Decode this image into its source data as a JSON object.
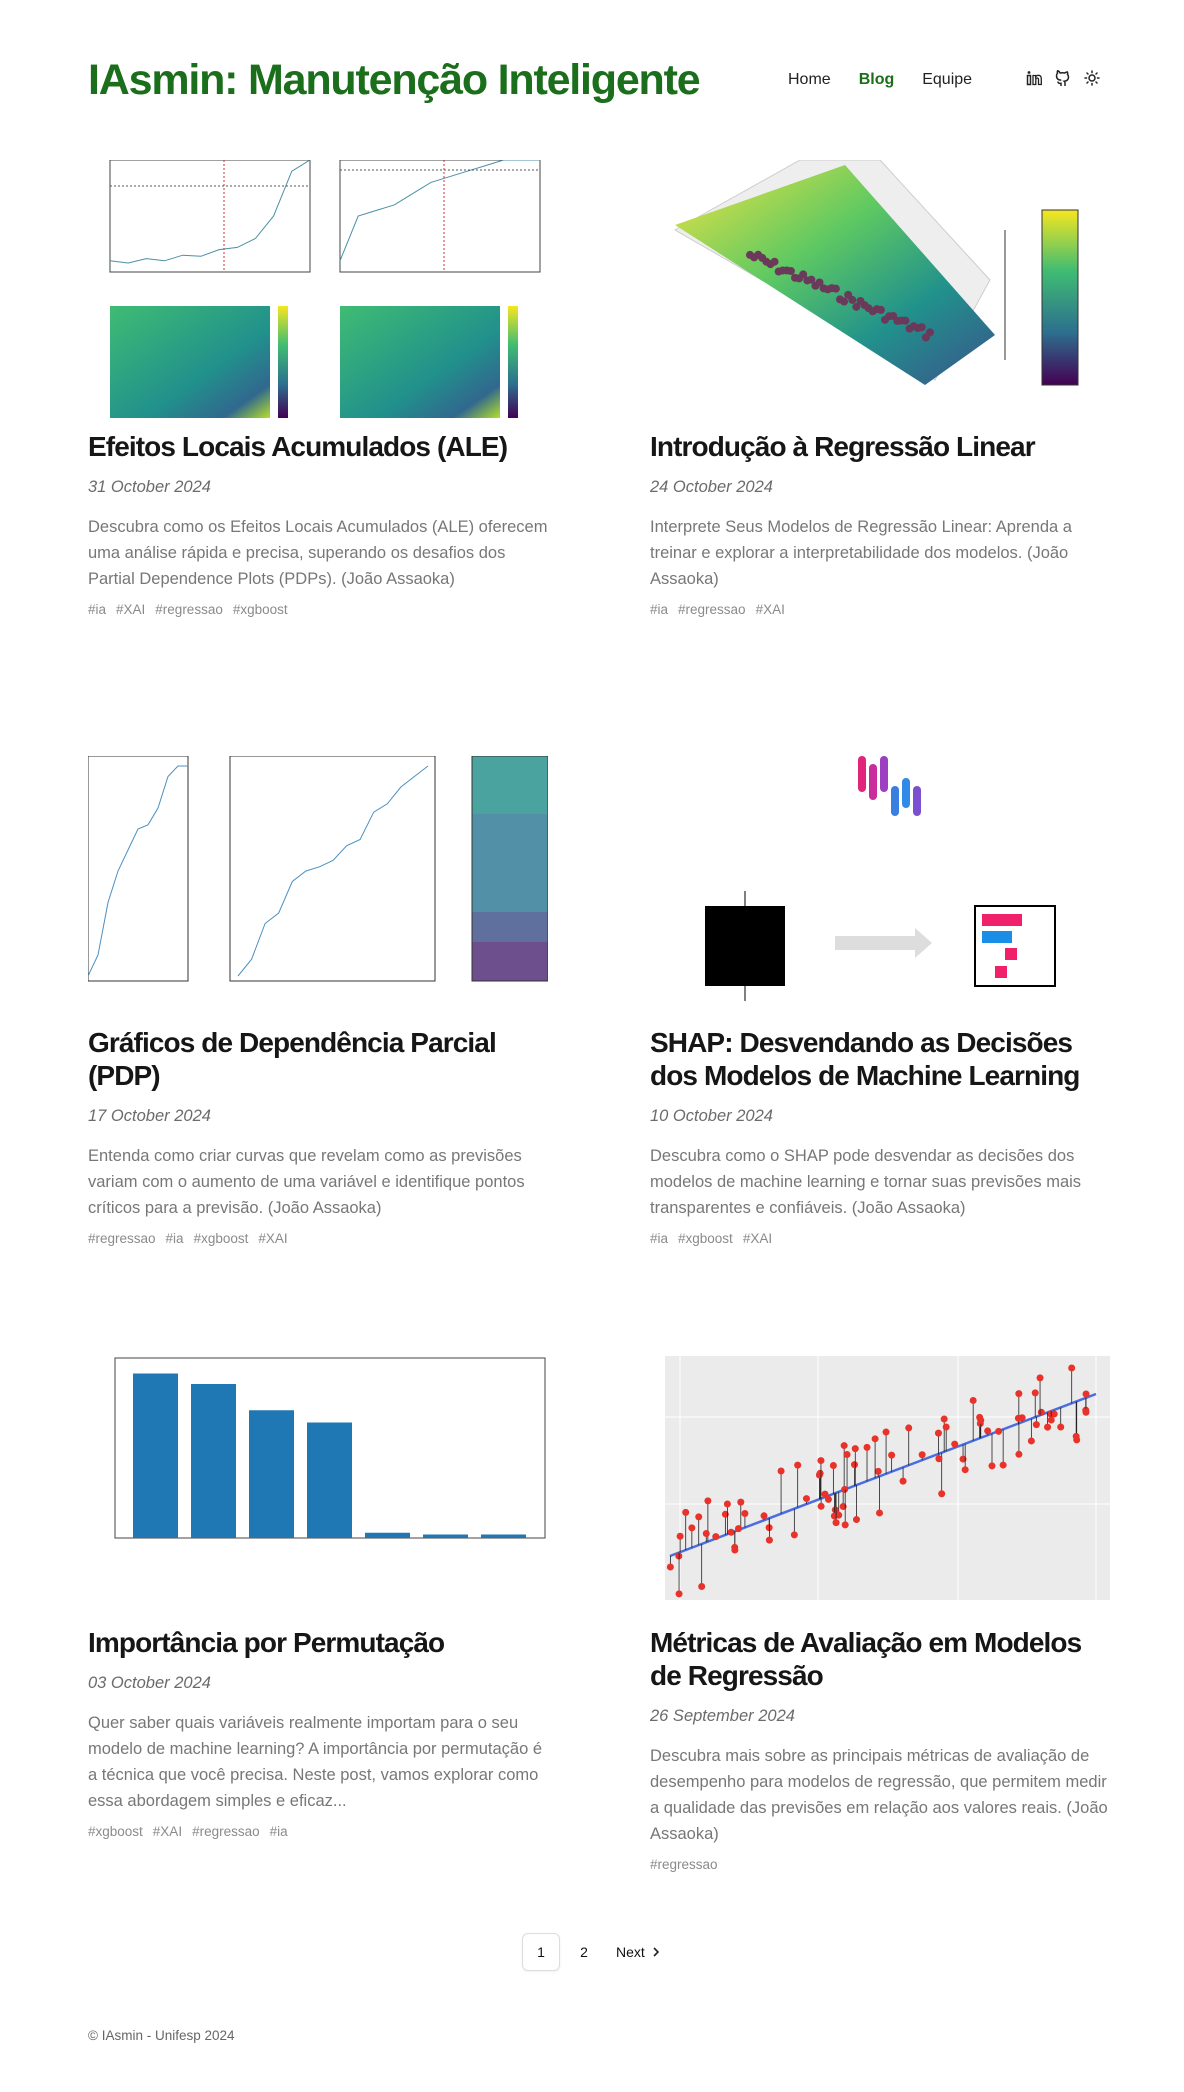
{
  "header": {
    "title": "IAsmin: Manutenção Inteligente",
    "nav": [
      "Home",
      "Blog",
      "Equipe"
    ]
  },
  "posts": [
    {
      "title": "Efeitos Locais Acumulados (ALE)",
      "date": "31 October 2024",
      "description": "Descubra como os Efeitos Locais Acumulados (ALE) oferecem uma análise rápida e precisa, superando os desafios dos Partial Dependence Plots (PDPs). (João Assaoka)",
      "tags": [
        "#ia",
        "#XAI",
        "#regressao",
        "#xgboost"
      ]
    },
    {
      "title": "Introdução à Regressão Linear",
      "date": "24 October 2024",
      "description": "Interprete Seus Modelos de Regressão Linear: Aprenda a treinar e explorar a interpretabilidade dos modelos. (João Assaoka)",
      "tags": [
        "#ia",
        "#regressao",
        "#XAI"
      ]
    },
    {
      "title": "Gráficos de Dependência Parcial (PDP)",
      "date": "17 October 2024",
      "description": "Entenda como criar curvas que revelam como as previsões variam com o aumento de uma variável e identifique pontos críticos para a previsão. (João Assaoka)",
      "tags": [
        "#regressao",
        "#ia",
        "#xgboost",
        "#XAI"
      ]
    },
    {
      "title": "SHAP: Desvendando as Decisões dos Modelos de Machine Learning",
      "date": "10 October 2024",
      "description": "Descubra como o SHAP pode desvendar as decisões dos modelos de machine learning e tornar suas previsões mais transparentes e confiáveis. (João Assaoka)",
      "tags": [
        "#ia",
        "#xgboost",
        "#XAI"
      ]
    },
    {
      "title": "Importância por Permutação",
      "date": "03 October 2024",
      "description": "Quer saber quais variáveis realmente importam para o seu modelo de machine learning? A importância por permutação é a técnica que você precisa. Neste post, vamos explorar como essa abordagem simples e eficaz...",
      "tags": [
        "#xgboost",
        "#XAI",
        "#regressao",
        "#ia"
      ]
    },
    {
      "title": "Métricas de Avaliação em Modelos de Regressão",
      "date": "26 September 2024",
      "description": "Descubra mais sobre as principais métricas de avaliação de desempenho para modelos de regressão, que permitem medir a qualidade das previsões em relação aos valores reais. (João Assaoka)",
      "tags": [
        "#regressao"
      ]
    }
  ],
  "pagination": {
    "pages": [
      "1",
      "2"
    ],
    "next": "Next"
  },
  "footer": "© IAsmin - Unifesp 2024"
}
